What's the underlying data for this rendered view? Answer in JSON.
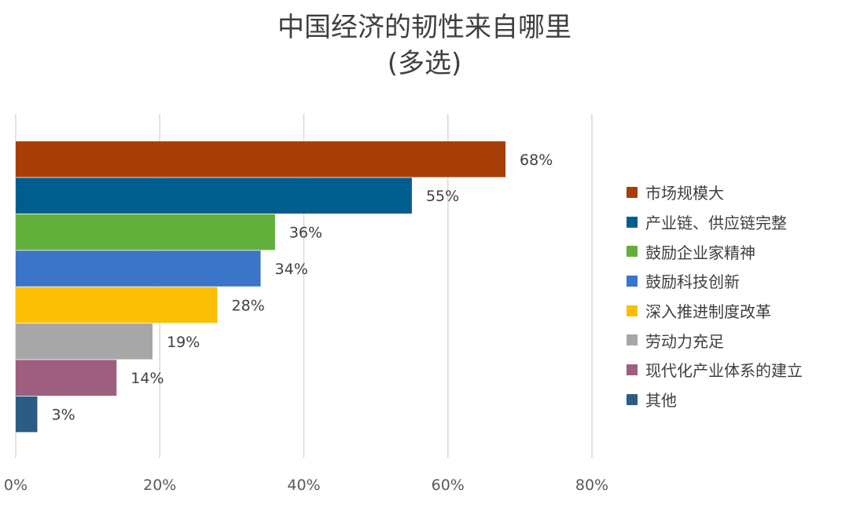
{
  "chart_data": {
    "type": "bar",
    "orientation": "horizontal",
    "title": "中国经济的韧性来自哪里",
    "subtitle": "(多选)",
    "xlim": [
      0,
      80
    ],
    "x_ticks": [
      "0%",
      "20%",
      "40%",
      "60%",
      "80%"
    ],
    "x_tick_values": [
      0,
      20,
      40,
      60,
      80
    ],
    "grid": true,
    "legend_position": "right",
    "series": [
      {
        "name": "市场规模大",
        "value": 68,
        "label": "68%",
        "color": "#A83E05"
      },
      {
        "name": "产业链、供应链完整",
        "value": 55,
        "label": "55%",
        "color": "#005E8F"
      },
      {
        "name": "鼓励企业家精神",
        "value": 36,
        "label": "36%",
        "color": "#62B03C"
      },
      {
        "name": "鼓励科技创新",
        "value": 34,
        "label": "34%",
        "color": "#3A75C9"
      },
      {
        "name": "深入推进制度改革",
        "value": 28,
        "label": "28%",
        "color": "#FDBF05"
      },
      {
        "name": "劳动力充足",
        "value": 19,
        "label": "19%",
        "color": "#A7A7A7"
      },
      {
        "name": "现代化产业体系的建立",
        "value": 14,
        "label": "14%",
        "color": "#9E5E80"
      },
      {
        "name": "其他",
        "value": 3,
        "label": "3%",
        "color": "#2C5C84"
      }
    ]
  }
}
